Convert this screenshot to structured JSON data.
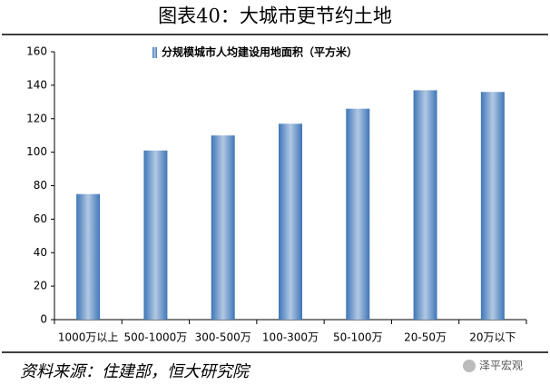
{
  "chart_data": {
    "type": "bar",
    "title": "图表40：大城市更节约土地",
    "categories": [
      "1000万以上",
      "500-1000万",
      "300-500万",
      "100-300万",
      "50-100万",
      "20-50万",
      "20万以下"
    ],
    "series": [
      {
        "name": "分规模城市人均建设用地面积（平方米）",
        "color": "#3f76b8",
        "values": [
          75,
          101,
          110,
          117,
          126,
          137,
          136
        ]
      }
    ],
    "ylim": [
      0,
      160
    ],
    "yticks": [
      0,
      20,
      40,
      60,
      80,
      100,
      120,
      140,
      160
    ],
    "grid": false,
    "source": "资料来源：住建部，恒大研究院",
    "watermark": "泽平宏观"
  }
}
